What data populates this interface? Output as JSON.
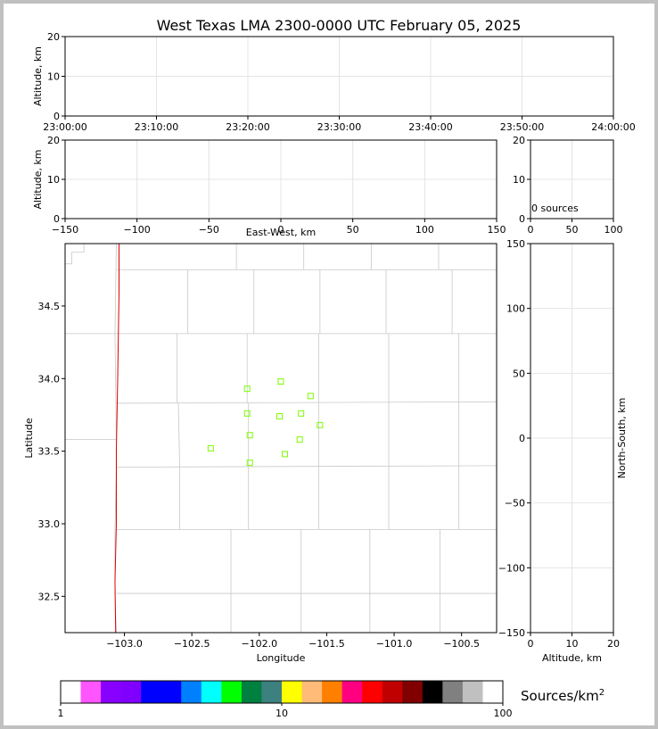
{
  "chart_data": [
    {
      "type": "scatter",
      "panel": "altitude-time",
      "title": "West Texas LMA 2300-0000 UTC February 05, 2025",
      "ylabel": "Altitude, km",
      "ylim": [
        0,
        20
      ],
      "yticks": [
        "0",
        "10",
        "20"
      ],
      "xticks": [
        "23:00:00",
        "23:10:00",
        "23:20:00",
        "23:30:00",
        "23:40:00",
        "23:50:00",
        "24:00:00"
      ],
      "points": []
    },
    {
      "type": "scatter",
      "panel": "altitude-east-west",
      "xlabel": "East-West, km",
      "ylabel": "Altitude, km",
      "xlim": [
        -150,
        150
      ],
      "ylim": [
        0,
        20
      ],
      "xticks": [
        "−150",
        "−100",
        "−50",
        "0",
        "50",
        "100",
        "150"
      ],
      "yticks": [
        "0",
        "10",
        "20"
      ],
      "points": []
    },
    {
      "type": "scatter",
      "panel": "altitude-histogram",
      "xlim": [
        0,
        100
      ],
      "ylim": [
        0,
        20
      ],
      "xticks": [
        "0",
        "50",
        "100"
      ],
      "yticks": [
        "0",
        "10",
        "20"
      ],
      "annotation": "0 sources",
      "values": []
    },
    {
      "type": "scatter",
      "panel": "plan-view",
      "xlabel": "Longitude",
      "ylabel": "Latitude",
      "xlim": [
        -103.44,
        -100.24
      ],
      "ylim": [
        32.25,
        34.93
      ],
      "xticks": [
        "−103.0",
        "−102.5",
        "−102.0",
        "−101.5",
        "−101.0",
        "−100.5"
      ],
      "yticks": [
        "32.5",
        "33.0",
        "33.5",
        "34.0",
        "34.5"
      ],
      "series": [
        {
          "marker": "open-square",
          "color": "#7cfc00",
          "x": [
            -101.84,
            -102.09,
            -101.62,
            -102.09,
            -101.85,
            -101.69,
            -101.55,
            -102.07,
            -101.7,
            -102.36,
            -101.81,
            -102.07
          ],
          "y": [
            33.98,
            33.93,
            33.88,
            33.76,
            33.74,
            33.76,
            33.68,
            33.61,
            33.58,
            33.52,
            33.48,
            33.42
          ]
        }
      ],
      "state_line_color": "#dd0000",
      "county_line_color": "#c8c8c8"
    },
    {
      "type": "scatter",
      "panel": "north-south-altitude",
      "xlabel": "Altitude, km",
      "ylabel": "North-South, km",
      "xlim": [
        0,
        20
      ],
      "ylim": [
        -150,
        150
      ],
      "xticks": [
        "0",
        "10",
        "20"
      ],
      "yticks": [
        "−150",
        "−100",
        "−50",
        "0",
        "50",
        "100",
        "150"
      ],
      "points": []
    }
  ],
  "colorbar": {
    "label": "Sources/km",
    "label_superscript": "2",
    "ticks": [
      "1",
      "10",
      "100"
    ],
    "scale": "log",
    "range": [
      1,
      100
    ],
    "colors": [
      "#ffffff",
      "#ff55ff",
      "#8800ff",
      "#8000ff",
      "#0000ff",
      "#0000ff",
      "#0080ff",
      "#00ffff",
      "#00ff00",
      "#008040",
      "#3d8080",
      "#ffff00",
      "#ffbb77",
      "#ff8000",
      "#ff0080",
      "#ff0000",
      "#c00000",
      "#800000",
      "#000000",
      "#808080",
      "#c0c0c0",
      "#ffffff"
    ]
  }
}
